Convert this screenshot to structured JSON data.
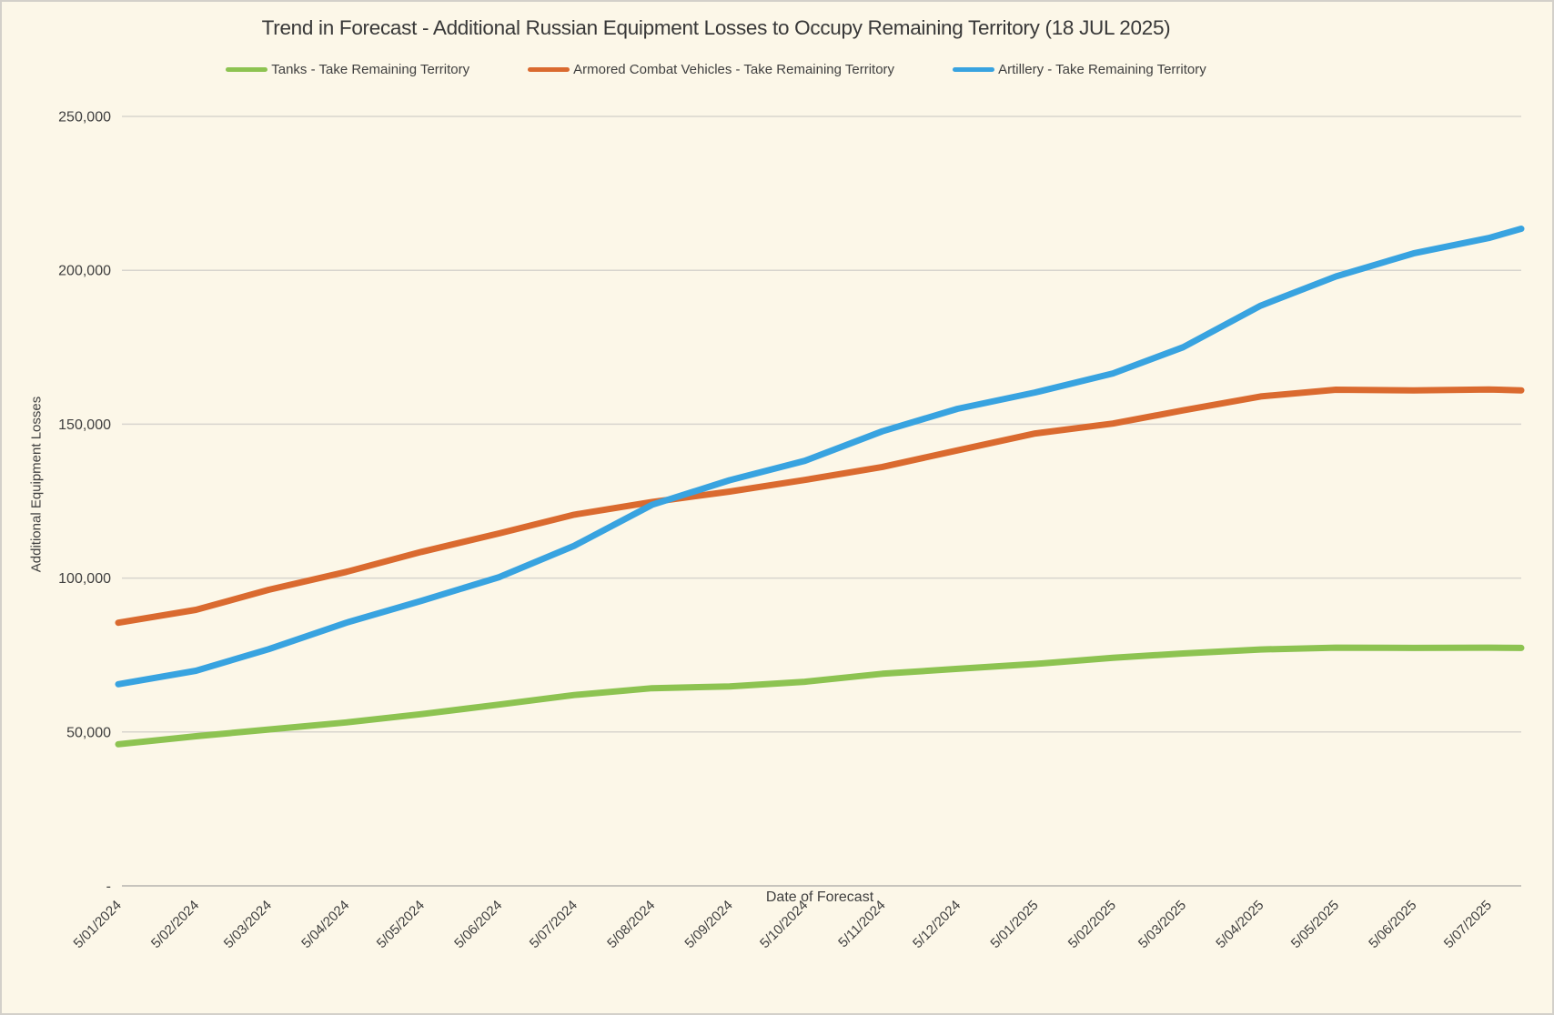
{
  "window": {
    "background_color": "#FCF7E8",
    "border_color": "#D3D0CA"
  },
  "chart_data": {
    "type": "line",
    "title": "Trend in Forecast - Additional Russian Equipment Losses to Occupy Remaining Territory (18 JUL 2025)",
    "xlabel": "Date of Forecast",
    "ylabel": "Additional Equipment Losses",
    "ylim": [
      0,
      250000
    ],
    "y_tick_step": 50000,
    "y_tick_labels": [
      "-",
      "50,000",
      "100,000",
      "150,000",
      "200,000",
      "250,000"
    ],
    "grid": "horizontal",
    "grid_color": "#D8D5CE",
    "axis_line_color": "#C7C4BD",
    "legend_position": "top",
    "x_tick_labels": [
      "5/01/2024",
      "5/02/2024",
      "5/03/2024",
      "5/04/2024",
      "5/05/2024",
      "5/06/2024",
      "5/07/2024",
      "5/08/2024",
      "5/09/2024",
      "5/10/2024",
      "5/11/2024",
      "5/12/2024",
      "5/01/2025",
      "5/02/2025",
      "5/03/2025",
      "5/04/2025",
      "5/05/2025",
      "5/06/2025",
      "5/07/2025"
    ],
    "x_tick_days": [
      0,
      31,
      60,
      91,
      121,
      152,
      182,
      213,
      244,
      274,
      305,
      335,
      366,
      397,
      425,
      456,
      486,
      517,
      547
    ],
    "sample_days": [
      0,
      31,
      60,
      91,
      121,
      152,
      182,
      213,
      244,
      274,
      305,
      335,
      366,
      397,
      425,
      456,
      486,
      517,
      547,
      560
    ],
    "series": [
      {
        "name": "Tanks - Take Remaining Territory",
        "color": "#8DC351",
        "values": [
          46000,
          48600,
          50800,
          53100,
          55800,
          58900,
          62000,
          64200,
          64800,
          66300,
          68900,
          70500,
          72100,
          74100,
          75500,
          76800,
          77400,
          77300,
          77400,
          77300
        ]
      },
      {
        "name": "Armored Combat Vehicles - Take Remaining Territory",
        "color": "#DA6A2F",
        "values": [
          85500,
          89700,
          96200,
          102000,
          108500,
          114500,
          120600,
          124700,
          128100,
          131900,
          136100,
          141500,
          147000,
          150200,
          154500,
          159000,
          161200,
          161000,
          161300,
          161000
        ]
      },
      {
        "name": "Artillery - Take Remaining Territory",
        "color": "#38A3E0",
        "values": [
          65500,
          69900,
          76900,
          85500,
          92600,
          100300,
          110500,
          123800,
          131800,
          138100,
          147700,
          155000,
          160300,
          166500,
          175000,
          188500,
          198000,
          205500,
          210500,
          213500
        ]
      }
    ]
  }
}
